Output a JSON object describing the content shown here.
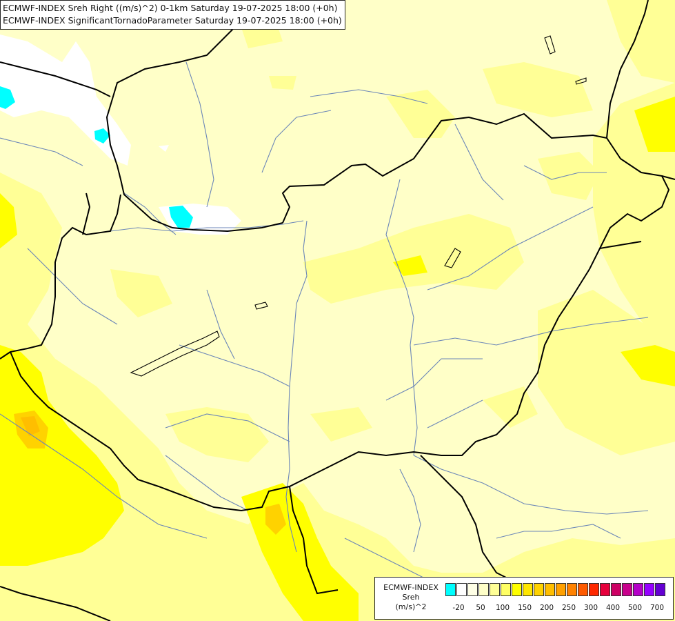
{
  "header": {
    "line1": "ECMWF-INDEX Sreh Right ((m/s)^2) 0-1km Saturday 19-07-2025 18:00 (+0h)",
    "line2": "ECMWF-INDEX SignificantTornadoParameter Saturday 19-07-2025 18:00 (+0h)"
  },
  "colors": {
    "base": "#ffffc8",
    "level_50": "#ffff96",
    "level_100": "#ffff00",
    "level_150": "#ffd200",
    "negative": "#00ffff",
    "near_zero": "#ffffff",
    "borders": "#000000",
    "rivers": "#6b86b8"
  },
  "legend": {
    "title_line1": "ECMWF-INDEX",
    "title_line2": "Sreh",
    "title_line3": "(m/s)^2",
    "colors": [
      "#00ffff",
      "#ffffff",
      "#ffffe6",
      "#ffffc8",
      "#ffff96",
      "#ffff64",
      "#ffff00",
      "#ffe600",
      "#ffd200",
      "#ffbe00",
      "#ffa000",
      "#ff8200",
      "#ff5a00",
      "#ff2800",
      "#e6003c",
      "#cd0064",
      "#c8008c",
      "#b400c8",
      "#9600ff",
      "#6400d2",
      "#3c00aa",
      "#000082"
    ],
    "ticks": [
      {
        "label": "-20",
        "at": 1
      },
      {
        "label": "50",
        "at": 3
      },
      {
        "label": "100",
        "at": 5
      },
      {
        "label": "150",
        "at": 7
      },
      {
        "label": "200",
        "at": 9
      },
      {
        "label": "250",
        "at": 11
      },
      {
        "label": "300",
        "at": 13
      },
      {
        "label": "400",
        "at": 15
      },
      {
        "label": "500",
        "at": 17
      },
      {
        "label": "700",
        "at": 19
      }
    ]
  }
}
